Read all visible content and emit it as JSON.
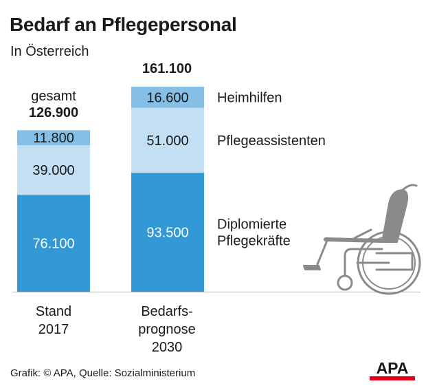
{
  "title": "Bedarf an Pflegepersonal",
  "subtitle": "In Österreich",
  "chart_data": {
    "type": "bar",
    "stacked": true,
    "categories": [
      "Stand 2017",
      "Bedarfsprognose 2030"
    ],
    "category_labels": [
      [
        "Stand",
        "2017"
      ],
      [
        "Bedarfs-",
        "prognose",
        "2030"
      ]
    ],
    "totals": [
      {
        "prefix": "gesamt",
        "value": "126.900"
      },
      {
        "prefix": "",
        "value": "161.100"
      }
    ],
    "series": [
      {
        "name": "Diplomierte Pflegekräfte",
        "name_lines": [
          "Diplomierte",
          "Pflegekräfte"
        ],
        "values": [
          76100,
          93500
        ],
        "labels": [
          "76.100",
          "93.500"
        ],
        "color": "#3399d6",
        "text_color": "#ffffff"
      },
      {
        "name": "Pflegeassistenten",
        "name_lines": [
          "Pflegeassistenten"
        ],
        "values": [
          39000,
          51000
        ],
        "labels": [
          "39.000",
          "51.000"
        ],
        "color": "#c3dff4",
        "text_color": "#1a1a1a"
      },
      {
        "name": "Heimhilfen",
        "name_lines": [
          "Heimhilfen"
        ],
        "values": [
          11800,
          16600
        ],
        "labels": [
          "11.800",
          "16.600"
        ],
        "color": "#85bfe6",
        "text_color": "#1a1a1a"
      }
    ],
    "ylim": [
      0,
      161100
    ],
    "grid": false
  },
  "source": "Grafik: © APA, Quelle: Sozialministerium",
  "logo_text": "APA",
  "colors": {
    "logo_red": "#e2001a",
    "baseline": "#b3b3b3",
    "illustration": "#8a8a8a"
  },
  "icons": {
    "illustration": "wheelchair-icon"
  }
}
